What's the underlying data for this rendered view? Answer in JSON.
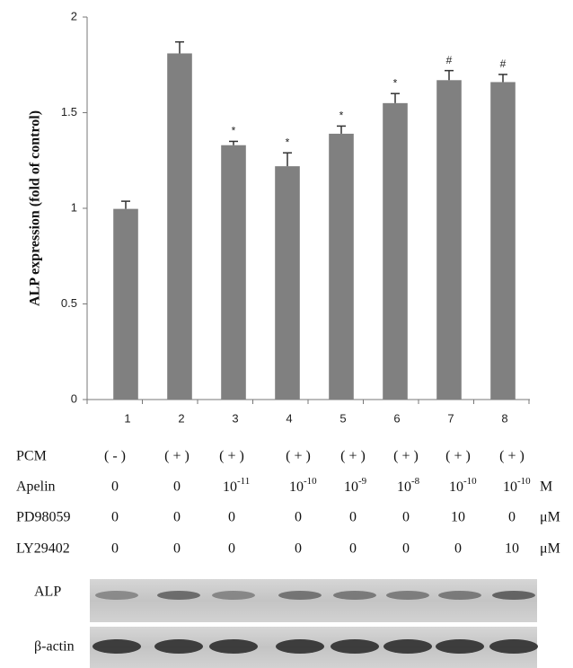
{
  "chart_data": {
    "type": "bar",
    "y_label": "ALP expression (fold of control)",
    "categories": [
      "1",
      "2",
      "3",
      "4",
      "5",
      "6",
      "7",
      "8"
    ],
    "values": [
      0.997,
      1.81,
      1.33,
      1.22,
      1.39,
      1.55,
      1.67,
      1.66
    ],
    "errors": [
      0.04,
      0.06,
      0.02,
      0.07,
      0.04,
      0.05,
      0.05,
      0.04
    ],
    "annotations": [
      null,
      null,
      "*",
      "*",
      "*",
      "*",
      "#",
      "#"
    ],
    "color": "#808080",
    "ylim": [
      0,
      2
    ],
    "yticks": [
      0,
      0.5,
      1,
      1.5,
      2
    ],
    "grid": false
  },
  "table": {
    "rows": [
      {
        "label": "PCM",
        "cells": [
          "( - )",
          "( + )",
          "( + )",
          "( + )",
          "( + )",
          "( + )",
          "( + )",
          "( + )"
        ],
        "unit": null
      },
      {
        "label": "Apelin",
        "cells": [
          "0",
          "0",
          {
            "base": "10",
            "sup": "-11"
          },
          {
            "base": "10",
            "sup": "-10"
          },
          {
            "base": "10",
            "sup": "-9"
          },
          {
            "base": "10",
            "sup": "-8"
          },
          {
            "base": "10",
            "sup": "-10"
          },
          {
            "base": "10",
            "sup": "-10"
          }
        ],
        "unit": "M"
      },
      {
        "label": "PD98059",
        "cells": [
          "0",
          "0",
          "0",
          "0",
          "0",
          "0",
          "10",
          "0"
        ],
        "unit": "μM"
      },
      {
        "label": "LY29402",
        "cells": [
          "0",
          "0",
          "0",
          "0",
          "0",
          "0",
          "0",
          "10"
        ],
        "unit": "μM"
      }
    ]
  },
  "blots": {
    "labels": [
      "ALP",
      "β-actin"
    ]
  }
}
